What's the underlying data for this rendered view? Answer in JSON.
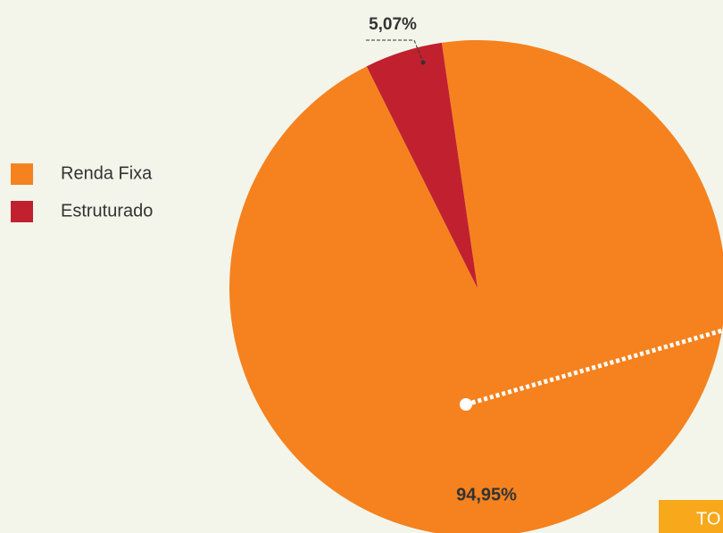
{
  "chart_data": {
    "type": "pie",
    "categories": [
      "Renda Fixa",
      "Estruturado"
    ],
    "values": [
      94.95,
      5.07
    ],
    "value_labels": [
      "94,95%",
      "5,07%"
    ],
    "colors": [
      "#f5821f",
      "#c1202f"
    ],
    "legend": "left",
    "annotation": "TO"
  }
}
